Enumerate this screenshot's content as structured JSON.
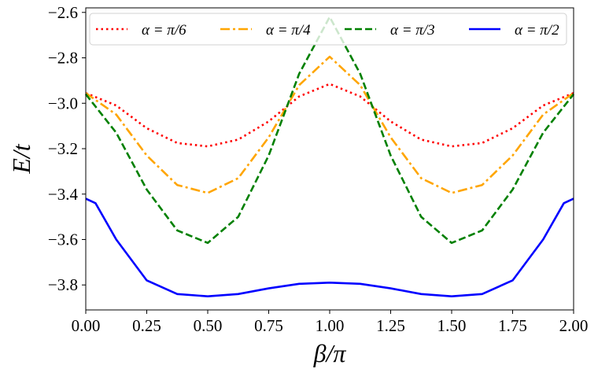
{
  "chart_data": {
    "type": "line",
    "title": "",
    "xlabel": "β/π",
    "ylabel": "E/t",
    "xlim": [
      0.0,
      2.0
    ],
    "ylim": [
      -3.91,
      -2.58
    ],
    "xticks": [
      0.0,
      0.25,
      0.5,
      0.75,
      1.0,
      1.25,
      1.5,
      1.75,
      2.0
    ],
    "xtick_labels": [
      "0.00",
      "0.25",
      "0.50",
      "0.75",
      "1.00",
      "1.25",
      "1.50",
      "1.75",
      "2.00"
    ],
    "yticks": [
      -3.8,
      -3.6,
      -3.4,
      -3.2,
      -3.0,
      -2.8,
      -2.6
    ],
    "ytick_labels": [
      "−3.8",
      "−3.6",
      "−3.4",
      "−3.2",
      "−3.0",
      "−2.8",
      "−2.6"
    ],
    "grid": false,
    "legend_position": "top",
    "series": [
      {
        "name": "α = π/6",
        "color": "#ff0000",
        "style": "dotted",
        "x": [
          0.0,
          0.125,
          0.25,
          0.375,
          0.5,
          0.625,
          0.75,
          0.875,
          1.0,
          1.125,
          1.25,
          1.375,
          1.5,
          1.625,
          1.75,
          1.875,
          2.0
        ],
        "values": [
          -2.955,
          -3.01,
          -3.11,
          -3.175,
          -3.19,
          -3.16,
          -3.08,
          -2.97,
          -2.915,
          -2.97,
          -3.08,
          -3.16,
          -3.19,
          -3.175,
          -3.11,
          -3.01,
          -2.955
        ]
      },
      {
        "name": "α = π/4",
        "color": "#ffa500",
        "style": "dashdot",
        "x": [
          0.0,
          0.125,
          0.25,
          0.375,
          0.5,
          0.625,
          0.75,
          0.875,
          1.0,
          1.125,
          1.25,
          1.375,
          1.5,
          1.625,
          1.75,
          1.875,
          2.0
        ],
        "values": [
          -2.955,
          -3.05,
          -3.23,
          -3.36,
          -3.395,
          -3.33,
          -3.15,
          -2.92,
          -2.795,
          -2.92,
          -3.15,
          -3.33,
          -3.395,
          -3.36,
          -3.23,
          -3.05,
          -2.955
        ]
      },
      {
        "name": "α = π/3",
        "color": "#008000",
        "style": "dashed",
        "x": [
          0.0,
          0.125,
          0.25,
          0.375,
          0.5,
          0.625,
          0.75,
          0.875,
          1.0,
          1.125,
          1.25,
          1.375,
          1.5,
          1.625,
          1.75,
          1.875,
          2.0
        ],
        "values": [
          -2.96,
          -3.13,
          -3.38,
          -3.56,
          -3.615,
          -3.5,
          -3.23,
          -2.87,
          -2.62,
          -2.87,
          -3.23,
          -3.5,
          -3.615,
          -3.56,
          -3.38,
          -3.13,
          -2.96
        ]
      },
      {
        "name": "α = π/2",
        "color": "#0000ff",
        "style": "solid",
        "x": [
          0.0,
          0.04,
          0.125,
          0.25,
          0.375,
          0.5,
          0.625,
          0.75,
          0.875,
          1.0,
          1.125,
          1.25,
          1.375,
          1.5,
          1.625,
          1.75,
          1.875,
          1.96,
          2.0
        ],
        "values": [
          -3.42,
          -3.44,
          -3.6,
          -3.78,
          -3.84,
          -3.85,
          -3.84,
          -3.815,
          -3.795,
          -3.79,
          -3.795,
          -3.815,
          -3.84,
          -3.85,
          -3.84,
          -3.78,
          -3.6,
          -3.44,
          -3.42
        ]
      }
    ]
  }
}
